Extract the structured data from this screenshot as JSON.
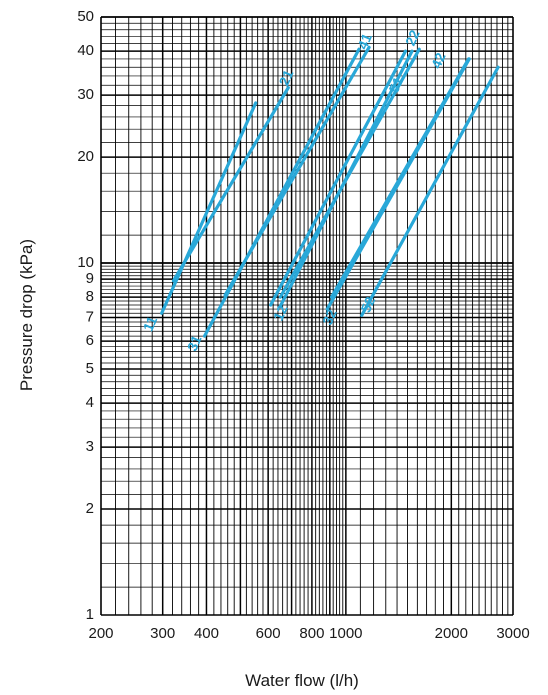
{
  "chart_data": {
    "type": "line",
    "title": "",
    "xlabel": "Water flow (l/h)",
    "ylabel": "Pressure drop (kPa)",
    "x_scale": "log",
    "y_scale": "log",
    "xlim": [
      200,
      3000
    ],
    "ylim": [
      1,
      50
    ],
    "grid": true,
    "series_color": "#29a8d8",
    "grid_color": "#000000",
    "x_ticks": [
      {
        "value": 200,
        "label": "200"
      },
      {
        "value": 300,
        "label": "300"
      },
      {
        "value": 400,
        "label": "400"
      },
      {
        "value": 600,
        "label": "600"
      },
      {
        "value": 800,
        "label": "800"
      },
      {
        "value": 1000,
        "label": "1000"
      },
      {
        "value": 2000,
        "label": "2000"
      },
      {
        "value": 3000,
        "label": "3000"
      }
    ],
    "y_ticks": [
      {
        "value": 1,
        "label": "1"
      },
      {
        "value": 2,
        "label": "2"
      },
      {
        "value": 3,
        "label": "3"
      },
      {
        "value": 4,
        "label": "4"
      },
      {
        "value": 5,
        "label": "5"
      },
      {
        "value": 6,
        "label": "6"
      },
      {
        "value": 7,
        "label": "7"
      },
      {
        "value": 8,
        "label": "8"
      },
      {
        "value": 9,
        "label": "9"
      },
      {
        "value": 10,
        "label": "10"
      },
      {
        "value": 20,
        "label": "20"
      },
      {
        "value": 30,
        "label": "30"
      },
      {
        "value": 40,
        "label": "40"
      },
      {
        "value": 50,
        "label": "50"
      }
    ],
    "series": [
      {
        "name": "11",
        "points": [
          [
            298,
            7.2
          ],
          [
            553,
            28.5
          ]
        ]
      },
      {
        "name": "21",
        "points": [
          [
            322,
            8.9
          ],
          [
            685,
            31.5
          ]
        ]
      },
      {
        "name": "31",
        "points": [
          [
            395,
            6.2
          ],
          [
            1090,
            40.5
          ]
        ]
      },
      {
        "name": "41",
        "points": [
          [
            452,
            8.1
          ],
          [
            1165,
            41.0
          ]
        ]
      },
      {
        "name": "51",
        "points": [
          [
            610,
            7.6
          ],
          [
            1480,
            40.0
          ]
        ]
      },
      {
        "name": "12",
        "points": [
          [
            648,
            7.5
          ],
          [
            1545,
            40.0
          ]
        ]
      },
      {
        "name": "22",
        "points": [
          [
            650,
            8.0
          ],
          [
            1620,
            40.5
          ]
        ]
      },
      {
        "name": "32",
        "points": [
          [
            885,
            7.4
          ],
          [
            2250,
            38.0
          ]
        ]
      },
      {
        "name": "42",
        "points": [
          [
            910,
            8.0
          ],
          [
            2240,
            38.0
          ]
        ]
      },
      {
        "name": "52",
        "points": [
          [
            1110,
            7.1
          ],
          [
            2720,
            36.0
          ]
        ]
      }
    ],
    "labels": [
      {
        "text": "11",
        "x": 278,
        "y": 6.7
      },
      {
        "text": "21",
        "x": 680,
        "y": 33.5
      },
      {
        "text": "31",
        "x": 372,
        "y": 5.9
      },
      {
        "text": "41",
        "x": 1140,
        "y": 42.5
      },
      {
        "text": "51",
        "x": 1400,
        "y": 32.0
      },
      {
        "text": "12",
        "x": 655,
        "y": 7.2
      },
      {
        "text": "22",
        "x": 1560,
        "y": 43.5
      },
      {
        "text": "32",
        "x": 905,
        "y": 7.0
      },
      {
        "text": "42",
        "x": 1850,
        "y": 37.5
      },
      {
        "text": "52",
        "x": 1165,
        "y": 7.6
      }
    ]
  }
}
